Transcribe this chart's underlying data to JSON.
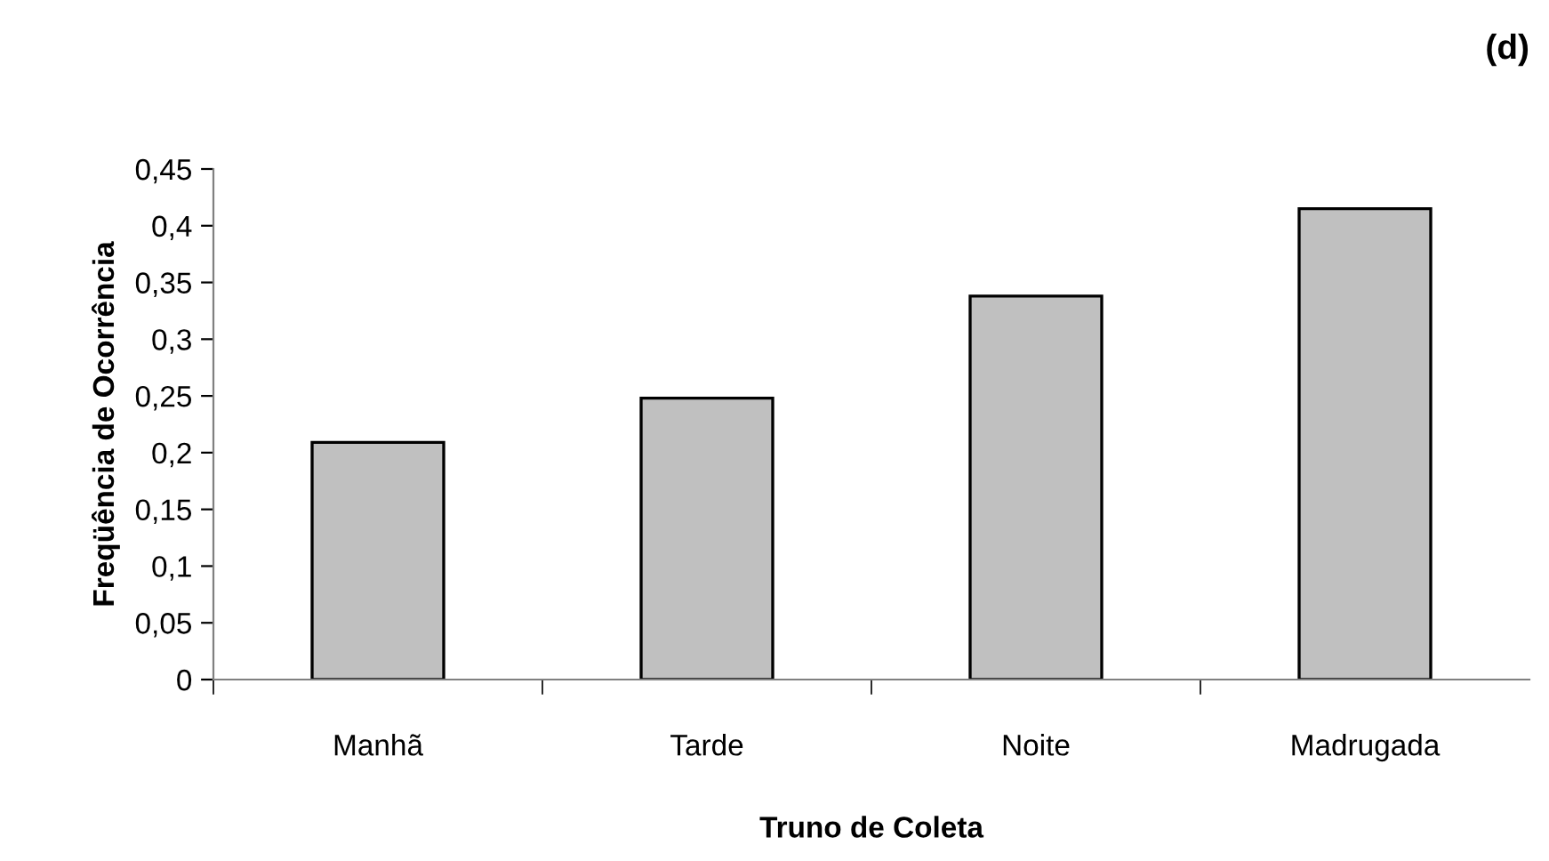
{
  "chart_data": {
    "type": "bar",
    "xlabel": "Truno de Coleta",
    "ylabel": "Freqüência de Ocorrência",
    "annotations": [
      "(d)"
    ],
    "categories": [
      "Manhã",
      "Tarde",
      "Noite",
      "Madrugada"
    ],
    "values": [
      0.209,
      0.248,
      0.338,
      0.415
    ],
    "color": "#c0c0c0",
    "ylim": [
      0,
      0.45
    ],
    "yticks": [
      0,
      {
        "value": 0.05,
        "label": "0,05"
      },
      {
        "value": 0.1,
        "label": "0,1"
      },
      {
        "value": 0.15,
        "label": "0,15"
      },
      {
        "value": 0.2,
        "label": "0,2"
      },
      {
        "value": 0.25,
        "label": "0,25"
      },
      {
        "value": 0.3,
        "label": "0,3"
      },
      {
        "value": 0.35,
        "label": "0,35"
      },
      {
        "value": 0.4,
        "label": "0,4"
      },
      {
        "value": 0.45,
        "label": "0,45"
      }
    ],
    "grid": false,
    "legend": false
  }
}
